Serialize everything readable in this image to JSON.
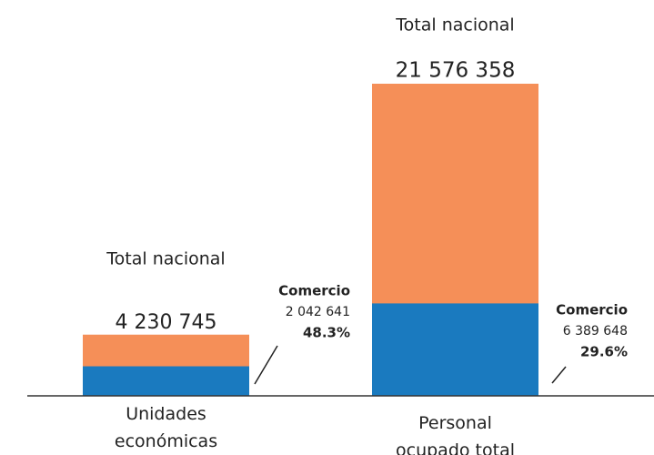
{
  "chart_data": {
    "type": "bar",
    "categories": [
      "Unidades económicas",
      "Personal ocupado total"
    ],
    "series": [
      {
        "name": "Total nacional",
        "color": "#f58f58",
        "values": [
          4230745,
          21576358
        ],
        "value_labels": [
          "4 230 745",
          "21 576 358"
        ]
      },
      {
        "name": "Comercio",
        "color": "#1a7abf",
        "values": [
          2042641,
          6389648
        ],
        "value_labels": [
          "2 042 641",
          "6 389 648"
        ],
        "shares": [
          {
            "value": 48.3,
            "label": "48.3%"
          },
          {
            "value": 29.6,
            "label": "29.6%"
          }
        ]
      }
    ]
  }
}
